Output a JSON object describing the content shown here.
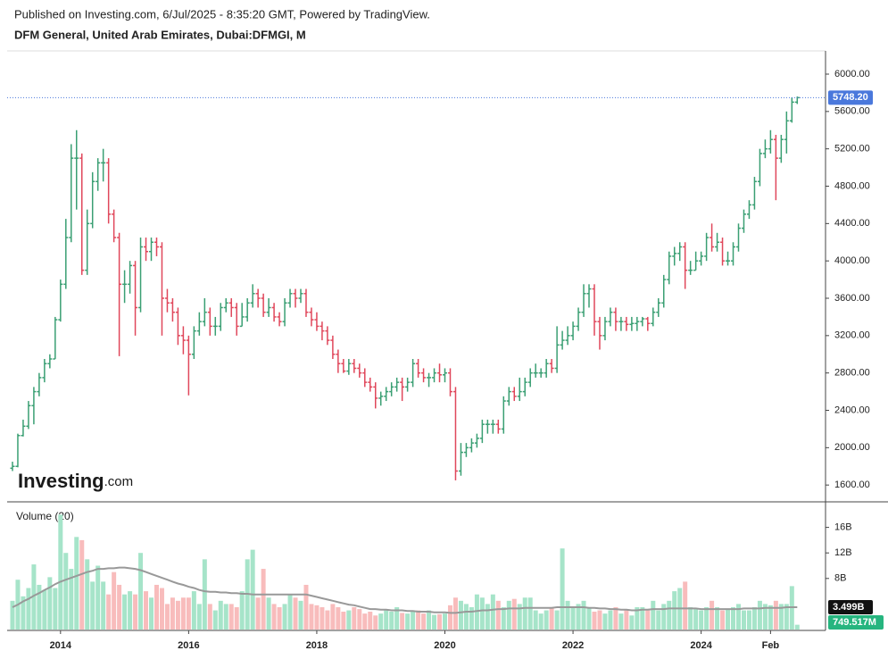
{
  "header": {
    "published": "Published on Investing.com, 6/Jul/2025 - 8:35:20 GMT, Powered by TradingView."
  },
  "logo": {
    "main": "Investing",
    "suffix": ".com"
  },
  "chart_data": [
    {
      "type": "ohlc",
      "title": "DFM General, United Arab Emirates, Dubai:DFMGI, M",
      "up_color": "#3a9f73",
      "down_color": "#e0475b",
      "open": [
        1780,
        1800,
        2130,
        2230,
        2450,
        2600,
        2750,
        2900,
        2950,
        3370,
        3750,
        4250,
        5100,
        5100,
        3900,
        4400,
        4850,
        5050,
        5050,
        4500,
        4250,
        3750,
        3750,
        3950,
        3500,
        4150,
        4100,
        4200,
        4150,
        3600,
        3550,
        3450,
        3200,
        3150,
        3000,
        3250,
        3350,
        3450,
        3300,
        3300,
        3500,
        3550,
        3500,
        3300,
        3400,
        3550,
        3650,
        3600,
        3450,
        3500,
        3400,
        3350,
        3550,
        3650,
        3600,
        3650,
        3450,
        3370,
        3300,
        3250,
        3150,
        3000,
        2900,
        2820,
        2900,
        2850,
        2800,
        2700,
        2650,
        2530,
        2550,
        2600,
        2650,
        2700,
        2650,
        2700,
        2900,
        2800,
        2750,
        2750,
        2800,
        2780,
        2800,
        2600,
        1750,
        1950,
        2000,
        2050,
        2100,
        2250,
        2250,
        2250,
        2200,
        2500,
        2600,
        2550,
        2600,
        2700,
        2800,
        2800,
        2800,
        2900,
        2850,
        3100,
        3150,
        3200,
        3300,
        3450,
        3650,
        3700,
        3350,
        3200,
        3350,
        3450,
        3350,
        3350,
        3320,
        3330,
        3350,
        3380,
        3330,
        3450,
        3550,
        3800,
        4050,
        4080,
        4150,
        3900,
        3900,
        4000,
        4050,
        4250,
        4150,
        4200,
        4000,
        4000,
        4150,
        4350,
        4500,
        4600,
        4850,
        5150,
        5200,
        5300,
        5100,
        5300,
        5500,
        5700
      ],
      "high": [
        1850,
        2150,
        2300,
        2500,
        2650,
        2800,
        2950,
        3000,
        3400,
        3800,
        4450,
        5250,
        5400,
        5150,
        4550,
        4950,
        5100,
        5200,
        5100,
        4550,
        4300,
        3900,
        4000,
        4000,
        4250,
        4250,
        4250,
        4250,
        4200,
        3700,
        3600,
        3500,
        3300,
        3200,
        3300,
        3450,
        3600,
        3500,
        3400,
        3550,
        3600,
        3600,
        3550,
        3550,
        3600,
        3750,
        3700,
        3650,
        3600,
        3550,
        3450,
        3600,
        3700,
        3700,
        3700,
        3700,
        3500,
        3450,
        3350,
        3300,
        3200,
        3050,
        2950,
        2950,
        2950,
        2900,
        2850,
        2750,
        2700,
        2600,
        2650,
        2700,
        2750,
        2750,
        2750,
        2950,
        2950,
        2850,
        2800,
        2850,
        2900,
        2850,
        2850,
        2650,
        2050,
        2050,
        2100,
        2150,
        2300,
        2300,
        2300,
        2300,
        2550,
        2650,
        2650,
        2750,
        2750,
        2850,
        2900,
        2850,
        2950,
        2950,
        3300,
        3250,
        3300,
        3350,
        3500,
        3750,
        3750,
        3750,
        3400,
        3400,
        3500,
        3500,
        3400,
        3400,
        3400,
        3400,
        3400,
        3400,
        3500,
        3600,
        3850,
        4100,
        4150,
        4200,
        4200,
        4000,
        4100,
        4100,
        4300,
        4400,
        4300,
        4250,
        4100,
        4200,
        4400,
        4550,
        4650,
        4900,
        5200,
        5300,
        5400,
        5350,
        5350,
        5600,
        5750,
        5760
      ],
      "low": [
        1750,
        1790,
        2120,
        2200,
        2250,
        2550,
        2700,
        2850,
        2950,
        3350,
        3700,
        4200,
        4550,
        3850,
        3850,
        4350,
        4750,
        4850,
        4400,
        4200,
        2980,
        3550,
        3650,
        3200,
        3450,
        4000,
        4000,
        4050,
        3200,
        3450,
        3350,
        3100,
        3000,
        2560,
        2950,
        3200,
        3300,
        3200,
        3200,
        3250,
        3450,
        3400,
        3200,
        3300,
        3350,
        3500,
        3500,
        3400,
        3400,
        3350,
        3300,
        3300,
        3500,
        3500,
        3550,
        3400,
        3300,
        3250,
        3150,
        3100,
        2950,
        2800,
        2800,
        2780,
        2800,
        2750,
        2650,
        2600,
        2420,
        2450,
        2500,
        2550,
        2600,
        2500,
        2600,
        2650,
        2750,
        2700,
        2650,
        2700,
        2700,
        2700,
        2550,
        1650,
        1700,
        1900,
        1950,
        2000,
        2050,
        2150,
        2150,
        2150,
        2150,
        2450,
        2500,
        2500,
        2550,
        2650,
        2750,
        2750,
        2750,
        2800,
        2800,
        3050,
        3100,
        3150,
        3250,
        3400,
        3500,
        3200,
        3050,
        3150,
        3300,
        3250,
        3250,
        3250,
        3250,
        3250,
        3300,
        3250,
        3300,
        3400,
        3500,
        3750,
        3950,
        4000,
        3700,
        3850,
        3900,
        3950,
        4000,
        4100,
        4100,
        3950,
        3950,
        3950,
        4100,
        4300,
        4450,
        4550,
        4800,
        5100,
        5150,
        4650,
        5050,
        5150,
        5480,
        5680
      ],
      "close": [
        1800,
        2130,
        2230,
        2450,
        2600,
        2750,
        2900,
        2950,
        3370,
        3750,
        4250,
        5100,
        5100,
        3900,
        4400,
        4850,
        5050,
        5050,
        4500,
        4250,
        3750,
        3750,
        3950,
        3500,
        4150,
        4100,
        4200,
        4150,
        3600,
        3550,
        3450,
        3200,
        3150,
        3000,
        3250,
        3350,
        3450,
        3300,
        3300,
        3500,
        3550,
        3500,
        3300,
        3400,
        3550,
        3650,
        3600,
        3450,
        3500,
        3400,
        3350,
        3550,
        3650,
        3600,
        3650,
        3450,
        3370,
        3300,
        3250,
        3150,
        3000,
        2900,
        2820,
        2900,
        2850,
        2800,
        2700,
        2650,
        2530,
        2550,
        2600,
        2650,
        2700,
        2650,
        2700,
        2900,
        2800,
        2750,
        2750,
        2800,
        2780,
        2800,
        2600,
        1750,
        1950,
        2000,
        2050,
        2100,
        2250,
        2250,
        2250,
        2200,
        2500,
        2600,
        2550,
        2600,
        2700,
        2800,
        2800,
        2800,
        2900,
        2850,
        3100,
        3150,
        3200,
        3300,
        3450,
        3650,
        3700,
        3350,
        3200,
        3350,
        3450,
        3350,
        3350,
        3320,
        3330,
        3350,
        3380,
        3330,
        3450,
        3550,
        3800,
        4050,
        4080,
        4150,
        3900,
        3900,
        4000,
        4050,
        4250,
        4150,
        4200,
        4000,
        4000,
        4150,
        4350,
        4500,
        4600,
        4850,
        5150,
        5200,
        5300,
        5100,
        5300,
        5500,
        5700,
        5748.2
      ],
      "last_price": {
        "value": 5748.2,
        "label": "5748.20",
        "color": "#4a78dc"
      },
      "xlim": [
        -1,
        152.3
      ],
      "xticks": [
        {
          "value": 9,
          "label": "2014"
        },
        {
          "value": 33,
          "label": "2016"
        },
        {
          "value": 57,
          "label": "2018"
        },
        {
          "value": 81,
          "label": "2020"
        },
        {
          "value": 105,
          "label": "2022"
        },
        {
          "value": 129,
          "label": "2024"
        },
        {
          "value": 142,
          "label": "Feb"
        }
      ],
      "ylim": [
        1420,
        6220
      ],
      "yticks": [
        {
          "value": 1600,
          "label": "1600.00"
        },
        {
          "value": 2000,
          "label": "2000.00"
        },
        {
          "value": 2400,
          "label": "2400.00"
        },
        {
          "value": 2800,
          "label": "2800.00"
        },
        {
          "value": 3200,
          "label": "3200.00"
        },
        {
          "value": 3600,
          "label": "3600.00"
        },
        {
          "value": 4000,
          "label": "4000.00"
        },
        {
          "value": 4400,
          "label": "4400.00"
        },
        {
          "value": 4800,
          "label": "4800.00"
        },
        {
          "value": 5200,
          "label": "5200.00"
        },
        {
          "value": 5600,
          "label": "5600.00"
        },
        {
          "value": 6000,
          "label": "6000.00"
        }
      ]
    },
    {
      "type": "volume",
      "title": "Volume (20)",
      "up_color": "#a6e4c9",
      "down_color": "#f8bcbc",
      "ma_color": "#999999",
      "values": [
        4500000000.0,
        7800000000.0,
        5200000000.0,
        6500000000.0,
        10200000000.0,
        7000000000.0,
        6200000000.0,
        8200000000.0,
        6500000000.0,
        18000000000.0,
        12000000000.0,
        9500000000.0,
        14500000000.0,
        14000000000.0,
        11000000000.0,
        7500000000.0,
        10000000000.0,
        7500000000.0,
        5500000000.0,
        9000000000.0,
        7000000000.0,
        5500000000.0,
        6000000000.0,
        5500000000.0,
        12000000000.0,
        6000000000.0,
        5000000000.0,
        7000000000.0,
        6500000000.0,
        4000000000.0,
        5000000000.0,
        4500000000.0,
        5000000000.0,
        5000000000.0,
        6000000000.0,
        4000000000.0,
        11000000000.0,
        4000000000.0,
        3000000000.0,
        4500000000.0,
        4000000000.0,
        4000000000.0,
        3500000000.0,
        6000000000.0,
        11000000000.0,
        12500000000.0,
        5000000000.0,
        9500000000.0,
        5000000000.0,
        4000000000.0,
        3500000000.0,
        4000000000.0,
        5500000000.0,
        5000000000.0,
        4500000000.0,
        7000000000.0,
        4000000000.0,
        3800000000.0,
        3500000000.0,
        3000000000.0,
        4000000000.0,
        3500000000.0,
        2800000000.0,
        3000000000.0,
        3500000000.0,
        3200000000.0,
        2500000000.0,
        2800000000.0,
        2200000000.0,
        2500000000.0,
        3000000000.0,
        2800000000.0,
        3500000000.0,
        2600000000.0,
        2500000000.0,
        2800000000.0,
        3000000000.0,
        2500000000.0,
        3000000000.0,
        2300000000.0,
        2400000000.0,
        2500000000.0,
        3800000000.0,
        5000000000.0,
        4500000000.0,
        4000000000.0,
        3500000000.0,
        5500000000.0,
        5000000000.0,
        4000000000.0,
        5500000000.0,
        4500000000.0,
        3500000000.0,
        4500000000.0,
        4800000000.0,
        4000000000.0,
        5000000000.0,
        5000000000.0,
        3000000000.0,
        2500000000.0,
        3000000000.0,
        3500000000.0,
        3000000000.0,
        12700000000.0,
        4500000000.0,
        3500000000.0,
        4000000000.0,
        4500000000.0,
        3500000000.0,
        2800000000.0,
        3000000000.0,
        2500000000.0,
        3000000000.0,
        3500000000.0,
        2500000000.0,
        3000000000.0,
        2200000000.0,
        3500000000.0,
        3500000000.0,
        3000000000.0,
        4500000000.0,
        3000000000.0,
        4000000000.0,
        4500000000.0,
        6000000000.0,
        6500000000.0,
        7500000000.0,
        3500000000.0,
        3200000000.0,
        3000000000.0,
        3500000000.0,
        4500000000.0,
        3500000000.0,
        3000000000.0,
        3200000000.0,
        3500000000.0,
        4000000000.0,
        3000000000.0,
        3000000000.0,
        3500000000.0,
        4500000000.0,
        4000000000.0,
        3800000000.0,
        4500000000.0,
        4000000000.0,
        4000000000.0,
        6800000000.0,
        749517000
      ],
      "ma": [
        3500000000.0,
        3900000000.0,
        4400000000.0,
        4800000000.0,
        5300000000.0,
        5700000000.0,
        6200000000.0,
        6600000000.0,
        7100000000.0,
        7500000000.0,
        7800000000.0,
        8100000000.0,
        8400000000.0,
        8700000000.0,
        9000000000.0,
        9200000000.0,
        9500000000.0,
        9500000000.0,
        9600000000.0,
        9600000000.0,
        9700000000.0,
        9700000000.0,
        9600000000.0,
        9500000000.0,
        9300000000.0,
        9000000000.0,
        8700000000.0,
        8400000000.0,
        8100000000.0,
        7800000000.0,
        7500000000.0,
        7200000000.0,
        7000000000.0,
        6700000000.0,
        6500000000.0,
        6200000000.0,
        6000000000.0,
        5900000000.0,
        5900000000.0,
        5800000000.0,
        5800000000.0,
        5700000000.0,
        5700000000.0,
        5600000000.0,
        5600000000.0,
        5500000000.0,
        5500000000.0,
        5500000000.0,
        5500000000.0,
        5500000000.0,
        5500000000.0,
        5500000000.0,
        5500000000.0,
        5500000000.0,
        5500000000.0,
        5500000000.0,
        5300000000.0,
        5100000000.0,
        4900000000.0,
        4700000000.0,
        4500000000.0,
        4300000000.0,
        4100000000.0,
        3900000000.0,
        3800000000.0,
        3600000000.0,
        3400000000.0,
        3200000000.0,
        3200000000.0,
        3100000000.0,
        3100000000.0,
        3000000000.0,
        3000000000.0,
        3000000000.0,
        2900000000.0,
        2900000000.0,
        2800000000.0,
        2800000000.0,
        2800000000.0,
        2700000000.0,
        2700000000.0,
        2700000000.0,
        2600000000.0,
        2600000000.0,
        2700000000.0,
        2800000000.0,
        2800000000.0,
        2900000000.0,
        3000000000.0,
        3000000000.0,
        3100000000.0,
        3200000000.0,
        3200000000.0,
        3300000000.0,
        3300000000.0,
        3300000000.0,
        3400000000.0,
        3400000000.0,
        3400000000.0,
        3400000000.0,
        3400000000.0,
        3400000000.0,
        3500000000.0,
        3500000000.0,
        3500000000.0,
        3500000000.0,
        3500000000.0,
        3500000000.0,
        3400000000.0,
        3400000000.0,
        3300000000.0,
        3300000000.0,
        3200000000.0,
        3200000000.0,
        3100000000.0,
        3100000000.0,
        3000000000.0,
        3000000000.0,
        3100000000.0,
        3100000000.0,
        3200000000.0,
        3200000000.0,
        3200000000.0,
        3300000000.0,
        3300000000.0,
        3300000000.0,
        3300000000.0,
        3300000000.0,
        3300000000.0,
        3200000000.0,
        3200000000.0,
        3200000000.0,
        3200000000.0,
        3200000000.0,
        3200000000.0,
        3200000000.0,
        3200000000.0,
        3300000000.0,
        3300000000.0,
        3300000000.0,
        3300000000.0,
        3400000000.0,
        3400000000.0,
        3400000000.0,
        3400000000.0,
        3500000000.0,
        3500000000.0,
        3499000000
      ],
      "ma_label": "3.499B",
      "last_label": "749.517M",
      "last_color": "#26b57f",
      "ylim": [
        0,
        20000000000.0
      ],
      "yticks": [
        {
          "value": 8000000000.0,
          "label": "8B"
        },
        {
          "value": 12000000000.0,
          "label": "12B"
        },
        {
          "value": 16000000000.0,
          "label": "16B"
        }
      ]
    }
  ]
}
